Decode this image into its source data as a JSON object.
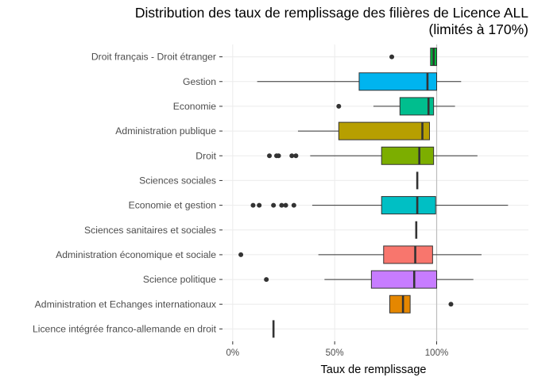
{
  "chart_data": {
    "type": "boxplot",
    "orientation": "horizontal",
    "title": "Distribution des taux de remplissage des filières de Licence ALL",
    "subtitle": "(limités à 170%)",
    "xlabel": "Taux de remplissage",
    "ylabel": "",
    "xlim": [
      -0.05,
      1.45
    ],
    "x_ticks": [
      {
        "value": 0,
        "label": "0%"
      },
      {
        "value": 0.5,
        "label": "50%"
      },
      {
        "value": 1,
        "label": "100%"
      }
    ],
    "reference_line": 1,
    "grid": true,
    "legend": "none",
    "series": [
      {
        "category": "Droit français - Droit étranger",
        "color": "#00B83A",
        "whisker_low": 0.97,
        "q1": 0.97,
        "median": 0.985,
        "q3": 1.0,
        "whisker_high": 1.0,
        "outliers": [
          0.78
        ]
      },
      {
        "category": "Gestion",
        "color": "#00B4EF",
        "whisker_low": 0.12,
        "q1": 0.62,
        "median": 0.955,
        "q3": 1.0,
        "whisker_high": 1.12,
        "outliers": []
      },
      {
        "category": "Economie",
        "color": "#00BE8E",
        "whisker_low": 0.69,
        "q1": 0.82,
        "median": 0.96,
        "q3": 0.985,
        "whisker_high": 1.09,
        "outliers": [
          0.52
        ]
      },
      {
        "category": "Administration publique",
        "color": "#B79F00",
        "whisker_low": 0.32,
        "q1": 0.52,
        "median": 0.93,
        "q3": 0.965,
        "whisker_high": 0.965,
        "outliers": []
      },
      {
        "category": "Droit",
        "color": "#7CAE00",
        "whisker_low": 0.38,
        "q1": 0.73,
        "median": 0.915,
        "q3": 0.985,
        "whisker_high": 1.2,
        "outliers": [
          0.18,
          0.215,
          0.225,
          0.29,
          0.31
        ]
      },
      {
        "category": "Sciences sociales",
        "color": "#00C1A3",
        "whisker_low": 0.905,
        "q1": 0.905,
        "median": 0.905,
        "q3": 0.905,
        "whisker_high": 0.905,
        "outliers": []
      },
      {
        "category": "Economie et gestion",
        "color": "#00BFC4",
        "whisker_low": 0.39,
        "q1": 0.73,
        "median": 0.905,
        "q3": 0.995,
        "whisker_high": 1.35,
        "outliers": [
          0.1,
          0.13,
          0.2,
          0.24,
          0.26,
          0.3
        ]
      },
      {
        "category": "Sciences sanitaires et sociales",
        "color": "#00BA38",
        "whisker_low": 0.9,
        "q1": 0.9,
        "median": 0.9,
        "q3": 0.9,
        "whisker_high": 0.9,
        "outliers": []
      },
      {
        "category": "Administration économique et sociale",
        "color": "#F8766D",
        "whisker_low": 0.42,
        "q1": 0.74,
        "median": 0.895,
        "q3": 0.98,
        "whisker_high": 1.22,
        "outliers": [
          0.04
        ]
      },
      {
        "category": "Science politique",
        "color": "#C77CFF",
        "whisker_low": 0.45,
        "q1": 0.68,
        "median": 0.89,
        "q3": 1.0,
        "whisker_high": 1.18,
        "outliers": [
          0.165
        ]
      },
      {
        "category": "Administration et Echanges internationaux",
        "color": "#E58700",
        "whisker_low": 0.77,
        "q1": 0.77,
        "median": 0.835,
        "q3": 0.87,
        "whisker_high": 0.87,
        "outliers": [
          1.07
        ]
      },
      {
        "category": "Licence intégrée franco-allemande en droit",
        "color": "#F564E3",
        "whisker_low": 0.2,
        "q1": 0.2,
        "median": 0.2,
        "q3": 0.2,
        "whisker_high": 0.2,
        "outliers": []
      }
    ]
  }
}
